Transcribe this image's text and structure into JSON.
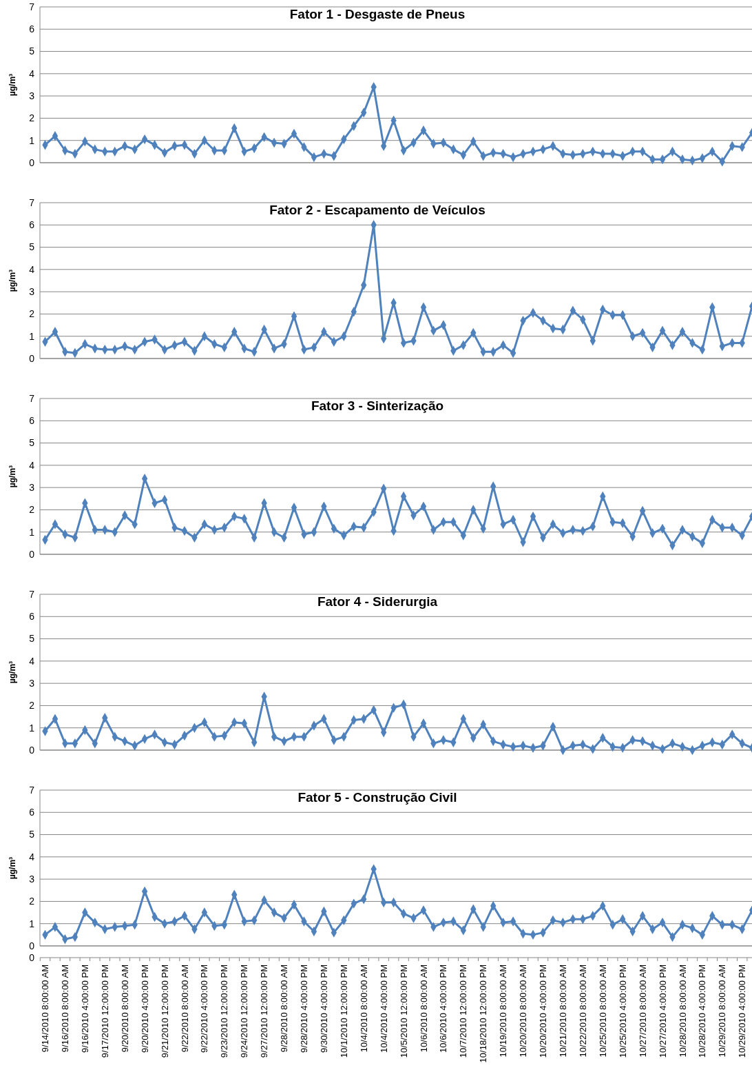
{
  "chart_data": [
    {
      "type": "line",
      "title": "Fator 1 - Desgaste de Pneus",
      "ylabel": "µg/m³",
      "ylim": [
        0,
        7
      ],
      "yticks": [
        0,
        1,
        2,
        3,
        4,
        5,
        6,
        7
      ],
      "grid": "y",
      "marker": "diamond",
      "tick_labels": "y",
      "categories": [
        null,
        null,
        null,
        null,
        null,
        null,
        null,
        null,
        null,
        null,
        null,
        null,
        null,
        null,
        null,
        null,
        null,
        null,
        null,
        null,
        null,
        null,
        null,
        null,
        null,
        null,
        null,
        null,
        null,
        null,
        null,
        null,
        null,
        null,
        null,
        null,
        null,
        null,
        null,
        null,
        null,
        null,
        null,
        null,
        null,
        null,
        null,
        null,
        null,
        null,
        null,
        null,
        null,
        null,
        null,
        null,
        null,
        null,
        null,
        null,
        null,
        null,
        null,
        null,
        null,
        null,
        null,
        null,
        null,
        null,
        null,
        null
      ],
      "series": [
        {
          "color": "#4f81bd",
          "values": [
            0.8,
            1.2,
            0.55,
            0.4,
            0.95,
            0.6,
            0.5,
            0.5,
            0.75,
            0.6,
            1.05,
            0.8,
            0.45,
            0.75,
            0.8,
            0.4,
            1.0,
            0.55,
            0.55,
            1.55,
            0.5,
            0.65,
            1.15,
            0.9,
            0.85,
            1.3,
            0.7,
            0.25,
            0.4,
            0.3,
            1.05,
            1.65,
            2.25,
            3.4,
            0.75,
            1.9,
            0.55,
            0.9,
            1.45,
            0.85,
            0.9,
            0.6,
            0.35,
            0.95,
            0.3,
            0.45,
            0.4,
            0.25,
            0.4,
            0.5,
            0.6,
            0.75,
            0.4,
            0.35,
            0.4,
            0.5,
            0.4,
            0.4,
            0.3,
            0.5,
            0.5,
            0.15,
            0.15,
            0.5,
            0.15,
            0.1,
            0.2,
            0.5,
            0.05,
            0.75,
            0.7,
            1.35
          ]
        }
      ]
    },
    {
      "type": "line",
      "title": "Fator 2 - Escapamento de Veículos",
      "ylabel": "µg/m³",
      "ylim": [
        0,
        7
      ],
      "yticks": [
        0,
        1,
        2,
        3,
        4,
        5,
        6,
        7
      ],
      "grid": "y",
      "marker": "diamond",
      "tick_labels": "y",
      "categories": [
        null,
        null,
        null,
        null,
        null,
        null,
        null,
        null,
        null,
        null,
        null,
        null,
        null,
        null,
        null,
        null,
        null,
        null,
        null,
        null,
        null,
        null,
        null,
        null,
        null,
        null,
        null,
        null,
        null,
        null,
        null,
        null,
        null,
        null,
        null,
        null,
        null,
        null,
        null,
        null,
        null,
        null,
        null,
        null,
        null,
        null,
        null,
        null,
        null,
        null,
        null,
        null,
        null,
        null,
        null,
        null,
        null,
        null,
        null,
        null,
        null,
        null,
        null,
        null,
        null,
        null,
        null,
        null,
        null,
        null,
        null,
        null
      ],
      "series": [
        {
          "color": "#4f81bd",
          "values": [
            0.75,
            1.2,
            0.3,
            0.25,
            0.65,
            0.45,
            0.4,
            0.4,
            0.55,
            0.4,
            0.75,
            0.85,
            0.4,
            0.6,
            0.75,
            0.35,
            1.0,
            0.65,
            0.5,
            1.2,
            0.45,
            0.3,
            1.3,
            0.45,
            0.65,
            1.9,
            0.4,
            0.5,
            1.2,
            0.75,
            1.0,
            2.1,
            3.3,
            6.0,
            0.9,
            2.5,
            0.7,
            0.8,
            2.3,
            1.25,
            1.5,
            0.35,
            0.6,
            1.15,
            0.3,
            0.3,
            0.6,
            0.25,
            1.7,
            2.05,
            1.7,
            1.35,
            1.3,
            2.15,
            1.75,
            0.8,
            2.2,
            1.95,
            1.95,
            1.0,
            1.15,
            0.5,
            1.25,
            0.6,
            1.2,
            0.7,
            0.4,
            2.3,
            0.55,
            0.7,
            0.7,
            2.35
          ]
        }
      ]
    },
    {
      "type": "line",
      "title": "Fator 3 - Sinterização",
      "ylabel": "µg/m³",
      "ylim": [
        0,
        7
      ],
      "yticks": [
        0,
        1,
        2,
        3,
        4,
        5,
        6,
        7
      ],
      "grid": "y",
      "marker": "diamond",
      "tick_labels": "y",
      "categories": [
        null,
        null,
        null,
        null,
        null,
        null,
        null,
        null,
        null,
        null,
        null,
        null,
        null,
        null,
        null,
        null,
        null,
        null,
        null,
        null,
        null,
        null,
        null,
        null,
        null,
        null,
        null,
        null,
        null,
        null,
        null,
        null,
        null,
        null,
        null,
        null,
        null,
        null,
        null,
        null,
        null,
        null,
        null,
        null,
        null,
        null,
        null,
        null,
        null,
        null,
        null,
        null,
        null,
        null,
        null,
        null,
        null,
        null,
        null,
        null,
        null,
        null,
        null,
        null,
        null,
        null,
        null,
        null,
        null,
        null,
        null,
        null
      ],
      "series": [
        {
          "color": "#4f81bd",
          "values": [
            0.65,
            1.35,
            0.9,
            0.75,
            2.3,
            1.1,
            1.1,
            1.0,
            1.75,
            1.35,
            3.4,
            2.3,
            2.45,
            1.2,
            1.05,
            0.75,
            1.35,
            1.1,
            1.2,
            1.7,
            1.6,
            0.75,
            2.3,
            1.0,
            0.75,
            2.1,
            0.9,
            1.0,
            2.15,
            1.15,
            0.85,
            1.25,
            1.2,
            1.9,
            2.95,
            1.05,
            2.6,
            1.75,
            2.15,
            1.1,
            1.45,
            1.45,
            0.85,
            2.0,
            1.15,
            3.05,
            1.35,
            1.55,
            0.55,
            1.7,
            0.75,
            1.35,
            0.95,
            1.1,
            1.05,
            1.25,
            2.6,
            1.45,
            1.4,
            0.8,
            1.95,
            0.95,
            1.15,
            0.4,
            1.1,
            0.8,
            0.5,
            1.55,
            1.2,
            1.2,
            0.85,
            1.7
          ]
        }
      ]
    },
    {
      "type": "line",
      "title": "Fator 4 - Siderurgia",
      "ylabel": "µg/m³",
      "ylim": [
        0,
        7
      ],
      "yticks": [
        0,
        1,
        2,
        3,
        4,
        5,
        6,
        7
      ],
      "grid": "y",
      "marker": "diamond",
      "tick_labels": "y",
      "categories": [
        null,
        null,
        null,
        null,
        null,
        null,
        null,
        null,
        null,
        null,
        null,
        null,
        null,
        null,
        null,
        null,
        null,
        null,
        null,
        null,
        null,
        null,
        null,
        null,
        null,
        null,
        null,
        null,
        null,
        null,
        null,
        null,
        null,
        null,
        null,
        null,
        null,
        null,
        null,
        null,
        null,
        null,
        null,
        null,
        null,
        null,
        null,
        null,
        null,
        null,
        null,
        null,
        null,
        null,
        null,
        null,
        null,
        null,
        null,
        null,
        null,
        null,
        null,
        null,
        null,
        null,
        null,
        null,
        null,
        null,
        null,
        null
      ],
      "series": [
        {
          "color": "#4f81bd",
          "values": [
            0.85,
            1.4,
            0.3,
            0.3,
            0.9,
            0.3,
            1.45,
            0.6,
            0.4,
            0.2,
            0.5,
            0.7,
            0.35,
            0.25,
            0.65,
            1.0,
            1.25,
            0.6,
            0.65,
            1.25,
            1.2,
            0.35,
            2.4,
            0.6,
            0.4,
            0.6,
            0.6,
            1.1,
            1.4,
            0.45,
            0.6,
            1.35,
            1.4,
            1.8,
            0.8,
            1.9,
            2.05,
            0.6,
            1.2,
            0.3,
            0.45,
            0.35,
            1.4,
            0.55,
            1.15,
            0.4,
            0.25,
            0.15,
            0.2,
            0.1,
            0.2,
            1.05,
            0.0,
            0.2,
            0.25,
            0.05,
            0.55,
            0.15,
            0.1,
            0.45,
            0.4,
            0.2,
            0.05,
            0.3,
            0.15,
            0.0,
            0.2,
            0.35,
            0.25,
            0.7,
            0.3,
            0.1
          ]
        }
      ]
    },
    {
      "type": "line",
      "title": "Fator 5 - Construção Civil",
      "ylabel": "µg/m³",
      "ylim": [
        0,
        7
      ],
      "yticks": [
        0,
        1,
        2,
        3,
        4,
        5,
        6,
        7
      ],
      "grid": "y",
      "marker": "diamond",
      "annotations": [
        "0"
      ],
      "categories": [
        "9/14/2010 8:00:00 AM",
        null,
        "9/16/2010 8:00:00 AM",
        null,
        "9/16/2010 4:00:00 PM",
        null,
        "9/17/2010 12:00:00 PM",
        null,
        "9/20/2010 8:00:00 AM",
        null,
        "9/20/2010 4:00:00 PM",
        null,
        "9/21/2010 12:00:00 PM",
        null,
        "9/22/2010 8:00:00 AM",
        null,
        "9/22/2010 4:00:00 PM",
        null,
        "9/23/2010 12:00:00 PM",
        null,
        "9/24/2010 12:00:00 PM",
        null,
        "9/27/2010 12:00:00 PM",
        null,
        "9/28/2010 8:00:00 AM",
        null,
        "9/28/2010 4:00:00 PM",
        null,
        "9/30/2010 4:00:00 PM",
        null,
        "10/1/2010 12:00:00 PM",
        null,
        "10/4/2010 8:00:00 AM",
        null,
        "10/4/2010 4:00:00 PM",
        null,
        "10/5/2010 12:00:00 PM",
        null,
        "10/6/2010 8:00:00 AM",
        null,
        "10/6/2010 4:00:00 PM",
        null,
        "10/7/2010 12:00:00 PM",
        null,
        "10/18/2010 12:00:00 PM",
        null,
        "10/19/2010 8:00:00 AM",
        null,
        "10/20/2010 8:00:00 AM",
        null,
        "10/20/2010 4:00:00 PM",
        null,
        "10/21/2010 8:00:00 AM",
        null,
        "10/22/2010 8:00:00 AM",
        null,
        "10/25/2010 8:00:00 AM",
        null,
        "10/25/2010 4:00:00 PM",
        null,
        "10/27/2010 8:00:00 AM",
        null,
        "10/27/2010 4:00:00 PM",
        null,
        "10/28/2010 8:00:00 AM",
        null,
        "10/28/2010 4:00:00 PM",
        null,
        "10/29/2010 8:00:00 AM",
        null,
        "10/29/2010 4:00:00 PM",
        null
      ],
      "series": [
        {
          "color": "#4f81bd",
          "values": [
            0.5,
            0.85,
            0.3,
            0.4,
            1.5,
            1.05,
            0.75,
            0.85,
            0.9,
            0.95,
            2.45,
            1.3,
            1.0,
            1.1,
            1.35,
            0.75,
            1.5,
            0.9,
            0.95,
            2.3,
            1.1,
            1.15,
            2.05,
            1.5,
            1.25,
            1.85,
            1.1,
            0.65,
            1.55,
            0.6,
            1.15,
            1.9,
            2.1,
            3.45,
            1.95,
            1.95,
            1.45,
            1.25,
            1.6,
            0.85,
            1.05,
            1.1,
            0.7,
            1.65,
            0.85,
            1.8,
            1.05,
            1.1,
            0.55,
            0.5,
            0.6,
            1.15,
            1.05,
            1.2,
            1.2,
            1.35,
            1.8,
            0.95,
            1.2,
            0.65,
            1.35,
            0.75,
            1.05,
            0.4,
            0.95,
            0.8,
            0.5,
            1.35,
            0.95,
            0.95,
            0.75,
            1.6
          ]
        }
      ]
    }
  ]
}
